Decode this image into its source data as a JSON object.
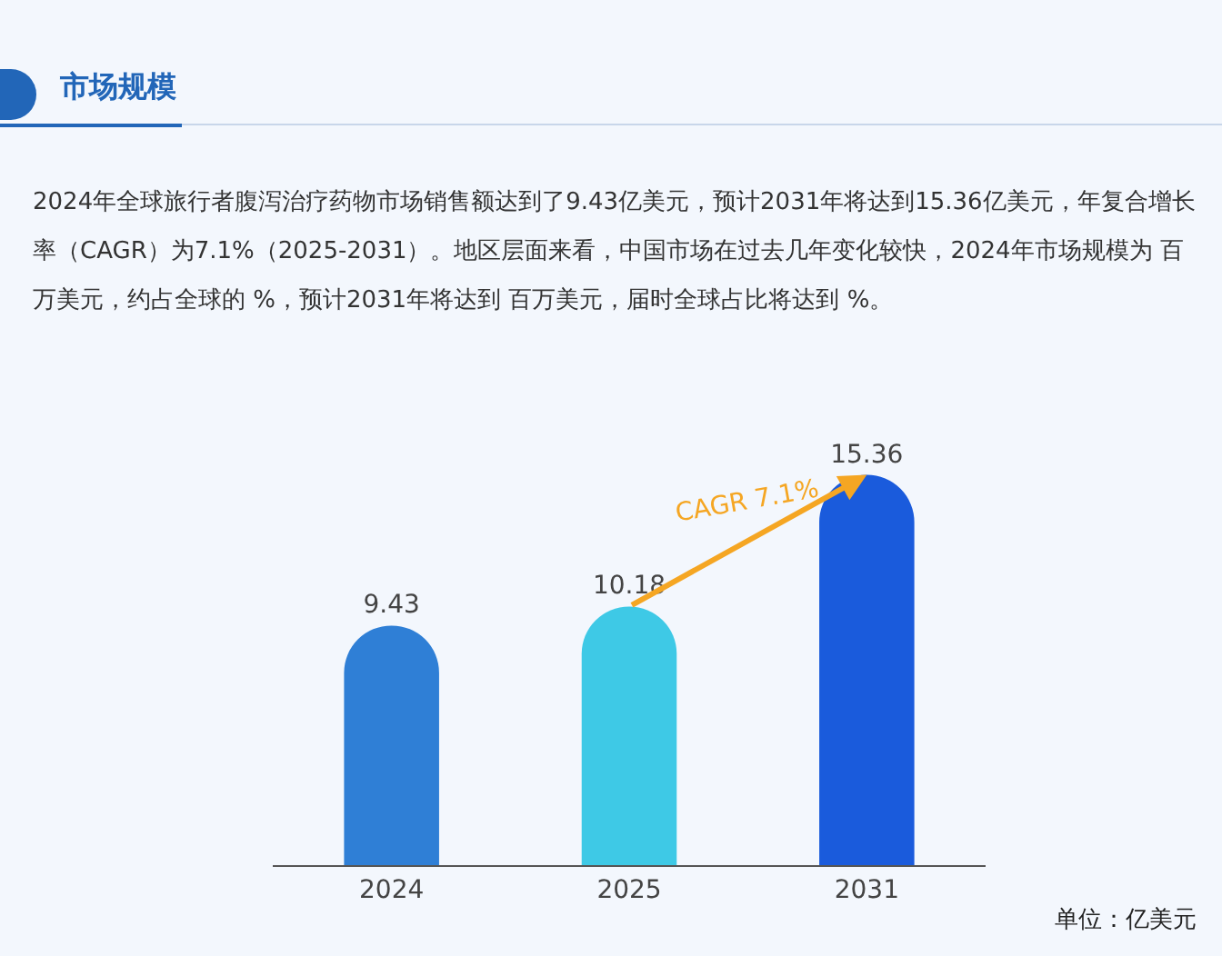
{
  "chart_data": {
    "type": "bar",
    "title": "市场规模",
    "subtitle": "2024年全球旅行者腹泻治疗药物市场销售额达到了9.43亿美元，预计2031年将达到15.36亿美元，年复合增长率（CAGR）为7.1%（2025-2031）。地区层面来看，中国市场在过去几年变化较快，2024年市场规模为 百万美元，约占全球的 %，预计2031年将达到 百万美元，届时全球占比将达到 %。",
    "categories": [
      "2024",
      "2025",
      "2031"
    ],
    "values": [
      9.43,
      10.18,
      15.36
    ],
    "colors": [
      "#2f7fd6",
      "#3ec9e6",
      "#1a5bdc"
    ],
    "data_labels": true,
    "annotations": [
      "CAGR 7.1%",
      "单位：亿美元"
    ]
  }
}
